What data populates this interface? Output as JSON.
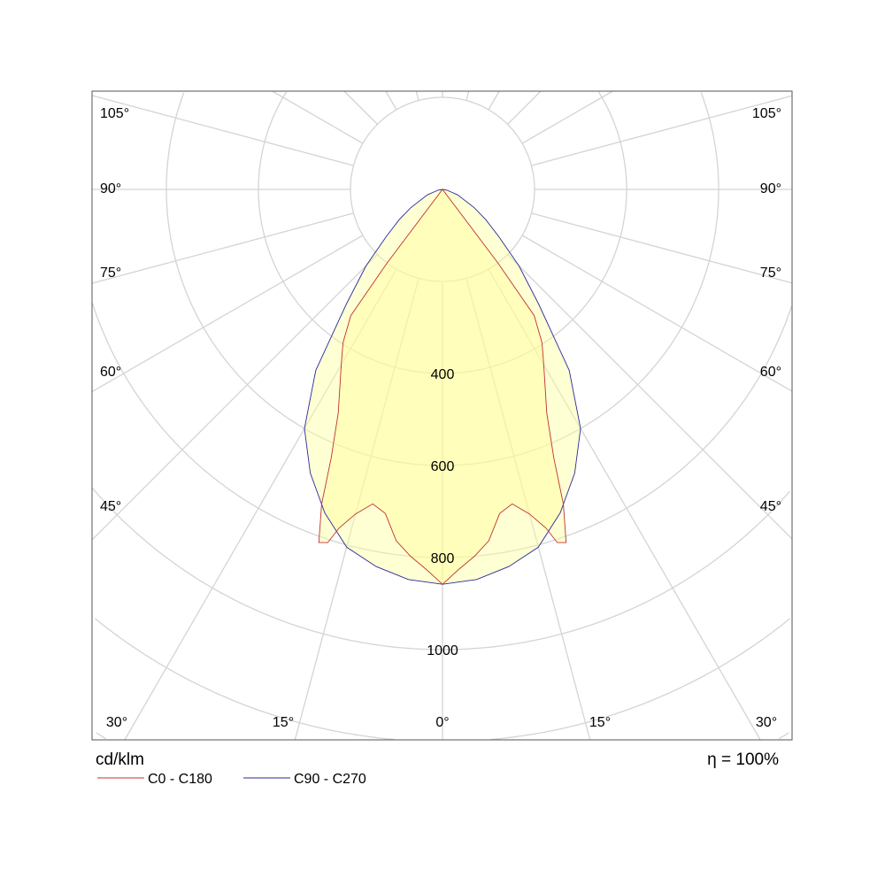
{
  "chart_data": {
    "type": "polar",
    "unit_label": "cd/klm",
    "efficiency_label": "η = 100%",
    "radial_ticks": [
      200,
      400,
      600,
      800,
      1000,
      1200,
      1400,
      1600
    ],
    "radial_tick_labels": [
      "400",
      "600",
      "800",
      "1000"
    ],
    "angle_labels": {
      "left": [
        "105°",
        "90°",
        "75°",
        "60°",
        "45°"
      ],
      "right": [
        "105°",
        "90°",
        "75°",
        "60°",
        "45°"
      ],
      "bottom": [
        "30°",
        "15°",
        "0°",
        "15°",
        "30°"
      ]
    },
    "angle_step_deg": 15,
    "grid": true,
    "legend_placement": "bottom-left",
    "series": [
      {
        "name": "C0 - C180",
        "color": "#c03030",
        "gamma": [
          0,
          2.5,
          5,
          7.5,
          10,
          12.5,
          15,
          17,
          18,
          19.3,
          21,
          22.5,
          25,
          30,
          33,
          36,
          37,
          38,
          90
        ],
        "values": [
          858,
          826,
          800,
          770,
          715,
          700,
          730,
          770,
          807,
          813,
          733,
          632,
          536,
          440,
          397,
          339,
          200,
          0,
          0
        ]
      },
      {
        "name": "C90 - C270",
        "color": "#2a2a9a",
        "gamma": [
          0,
          5,
          10,
          15,
          20,
          25,
          30,
          35,
          40,
          45,
          50,
          55,
          60,
          70,
          80,
          90
        ],
        "values": [
          858,
          851,
          832,
          805,
          748,
          680,
          600,
          480,
          325,
          235,
          160,
          115,
          80,
          35,
          10,
          0
        ]
      }
    ]
  }
}
